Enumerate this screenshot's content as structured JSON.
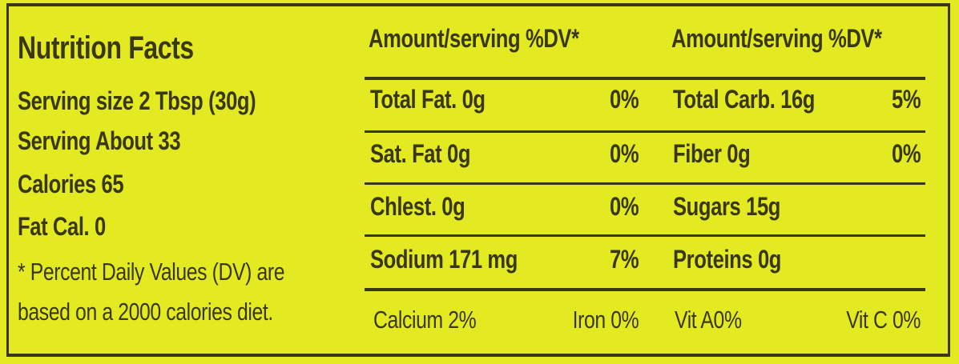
{
  "left": {
    "title": "Nutrition Facts",
    "serving_size": "Serving size 2 Tbsp (30g)",
    "servings": "Serving About 33",
    "calories": "Calories 65",
    "fat_calories": "Fat Cal. 0",
    "footnote_line1": "* Percent Daily Values (DV) are",
    "footnote_line2": "based on a 2000 calories diet."
  },
  "header": {
    "col1": "Amount/serving %DV*",
    "col2": "Amount/serving %DV*"
  },
  "rows": [
    {
      "n1": "Total Fat. 0g",
      "d1": "0%",
      "n2": "Total Carb. 16g",
      "d2": "5%"
    },
    {
      "n1": "Sat. Fat 0g",
      "d1": "0%",
      "n2": "Fiber 0g",
      "d2": "0%"
    },
    {
      "n1": "Chlest. 0g",
      "d1": "0%",
      "n2": "Sugars 15g",
      "d2": ""
    },
    {
      "n1": "Sodium 171 mg",
      "d1": "7%",
      "n2": "Proteins 0g",
      "d2": ""
    }
  ],
  "vitamins": {
    "calcium": "Calcium 2%",
    "iron": "Iron 0%",
    "vit_a": "Vit A0%",
    "vit_c": "Vit C 0%"
  },
  "colors": {
    "background": "#e4ea22",
    "ink": "#3a3812"
  }
}
